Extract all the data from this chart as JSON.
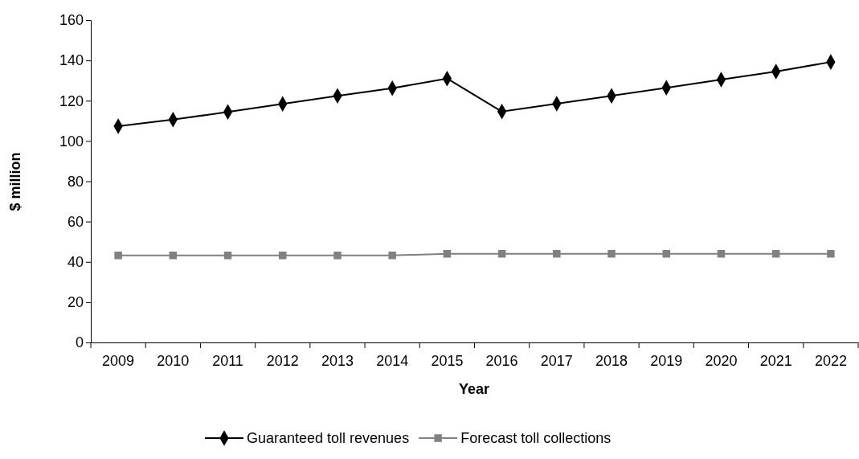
{
  "chart_data": {
    "type": "line",
    "xlabel": "Year",
    "ylabel": "$ million",
    "categories": [
      "2009",
      "2010",
      "2011",
      "2012",
      "2013",
      "2014",
      "2015",
      "2016",
      "2017",
      "2018",
      "2019",
      "2020",
      "2021",
      "2022"
    ],
    "series": [
      {
        "name": "Guaranteed toll revenues",
        "color": "#000000",
        "marker": "diamond",
        "values": [
          107.3,
          110.6,
          114.4,
          118.4,
          122.4,
          126.2,
          131,
          114.6,
          118.5,
          122.4,
          126.4,
          130.5,
          134.5,
          139.2
        ]
      },
      {
        "name": "Forecast toll collections",
        "color": "#808080",
        "marker": "square",
        "values": [
          43.2,
          43.2,
          43.2,
          43.2,
          43.2,
          43.2,
          44,
          44,
          44,
          44,
          44,
          44,
          44,
          44
        ]
      }
    ],
    "ylim": [
      0,
      160
    ],
    "yticks": [
      0,
      20,
      40,
      60,
      80,
      100,
      120,
      140,
      160
    ],
    "grid": false,
    "legend": "bottom"
  }
}
